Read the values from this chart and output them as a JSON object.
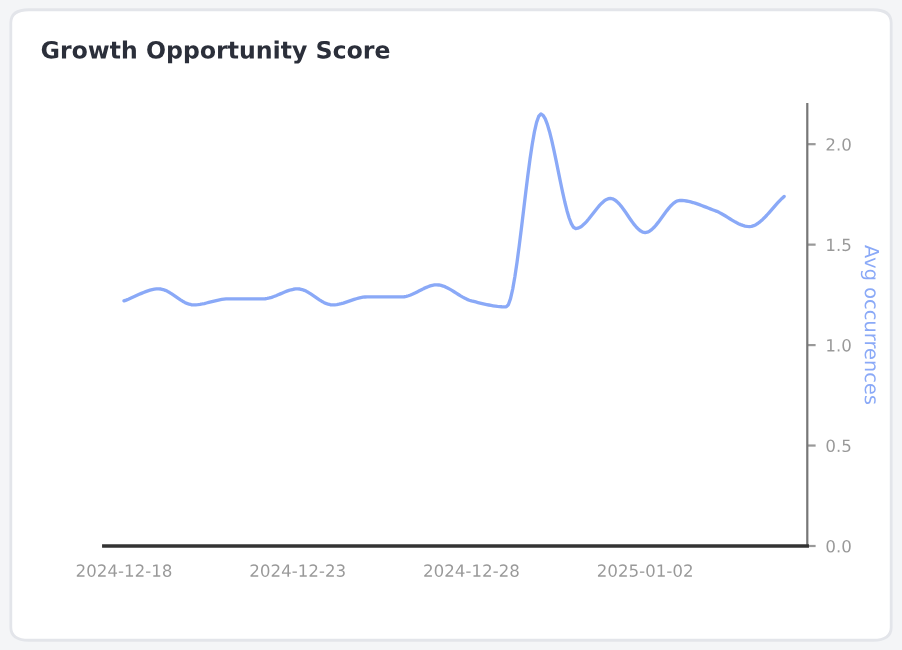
{
  "chart_data": {
    "type": "line",
    "title": "Growth Opportunity Score",
    "ylabel": "Avg occurrences",
    "x": [
      "2024-12-18",
      "2024-12-19",
      "2024-12-20",
      "2024-12-21",
      "2024-12-22",
      "2024-12-23",
      "2024-12-24",
      "2024-12-25",
      "2024-12-26",
      "2024-12-27",
      "2024-12-28",
      "2024-12-29",
      "2024-12-30",
      "2024-12-31",
      "2025-01-01",
      "2025-01-02",
      "2025-01-03",
      "2025-01-04",
      "2025-01-05",
      "2025-01-06"
    ],
    "series": [
      {
        "color": "#8aa9f7",
        "values": [
          1.22,
          1.28,
          1.2,
          1.23,
          1.23,
          1.28,
          1.2,
          1.24,
          1.24,
          1.3,
          1.22,
          1.19,
          2.15,
          1.58,
          1.73,
          1.56,
          1.72,
          1.67,
          1.59,
          1.74
        ]
      }
    ],
    "xlim": [
      "2024-12-17T10:00",
      "2025-01-06T16:00"
    ],
    "xticks": [
      "2024-12-18",
      "2024-12-23",
      "2024-12-28",
      "2025-01-02"
    ],
    "ylim": [
      0,
      2.2
    ],
    "yticks": [
      {
        "value": 0,
        "label": "0.0"
      },
      {
        "value": 0.5,
        "label": "0.5"
      },
      {
        "value": 1,
        "label": "1.0"
      },
      {
        "value": 1.5,
        "label": "1.5"
      },
      {
        "value": 2,
        "label": "2.0"
      }
    ],
    "legend": false,
    "marker": "none",
    "line_style": "solid"
  }
}
